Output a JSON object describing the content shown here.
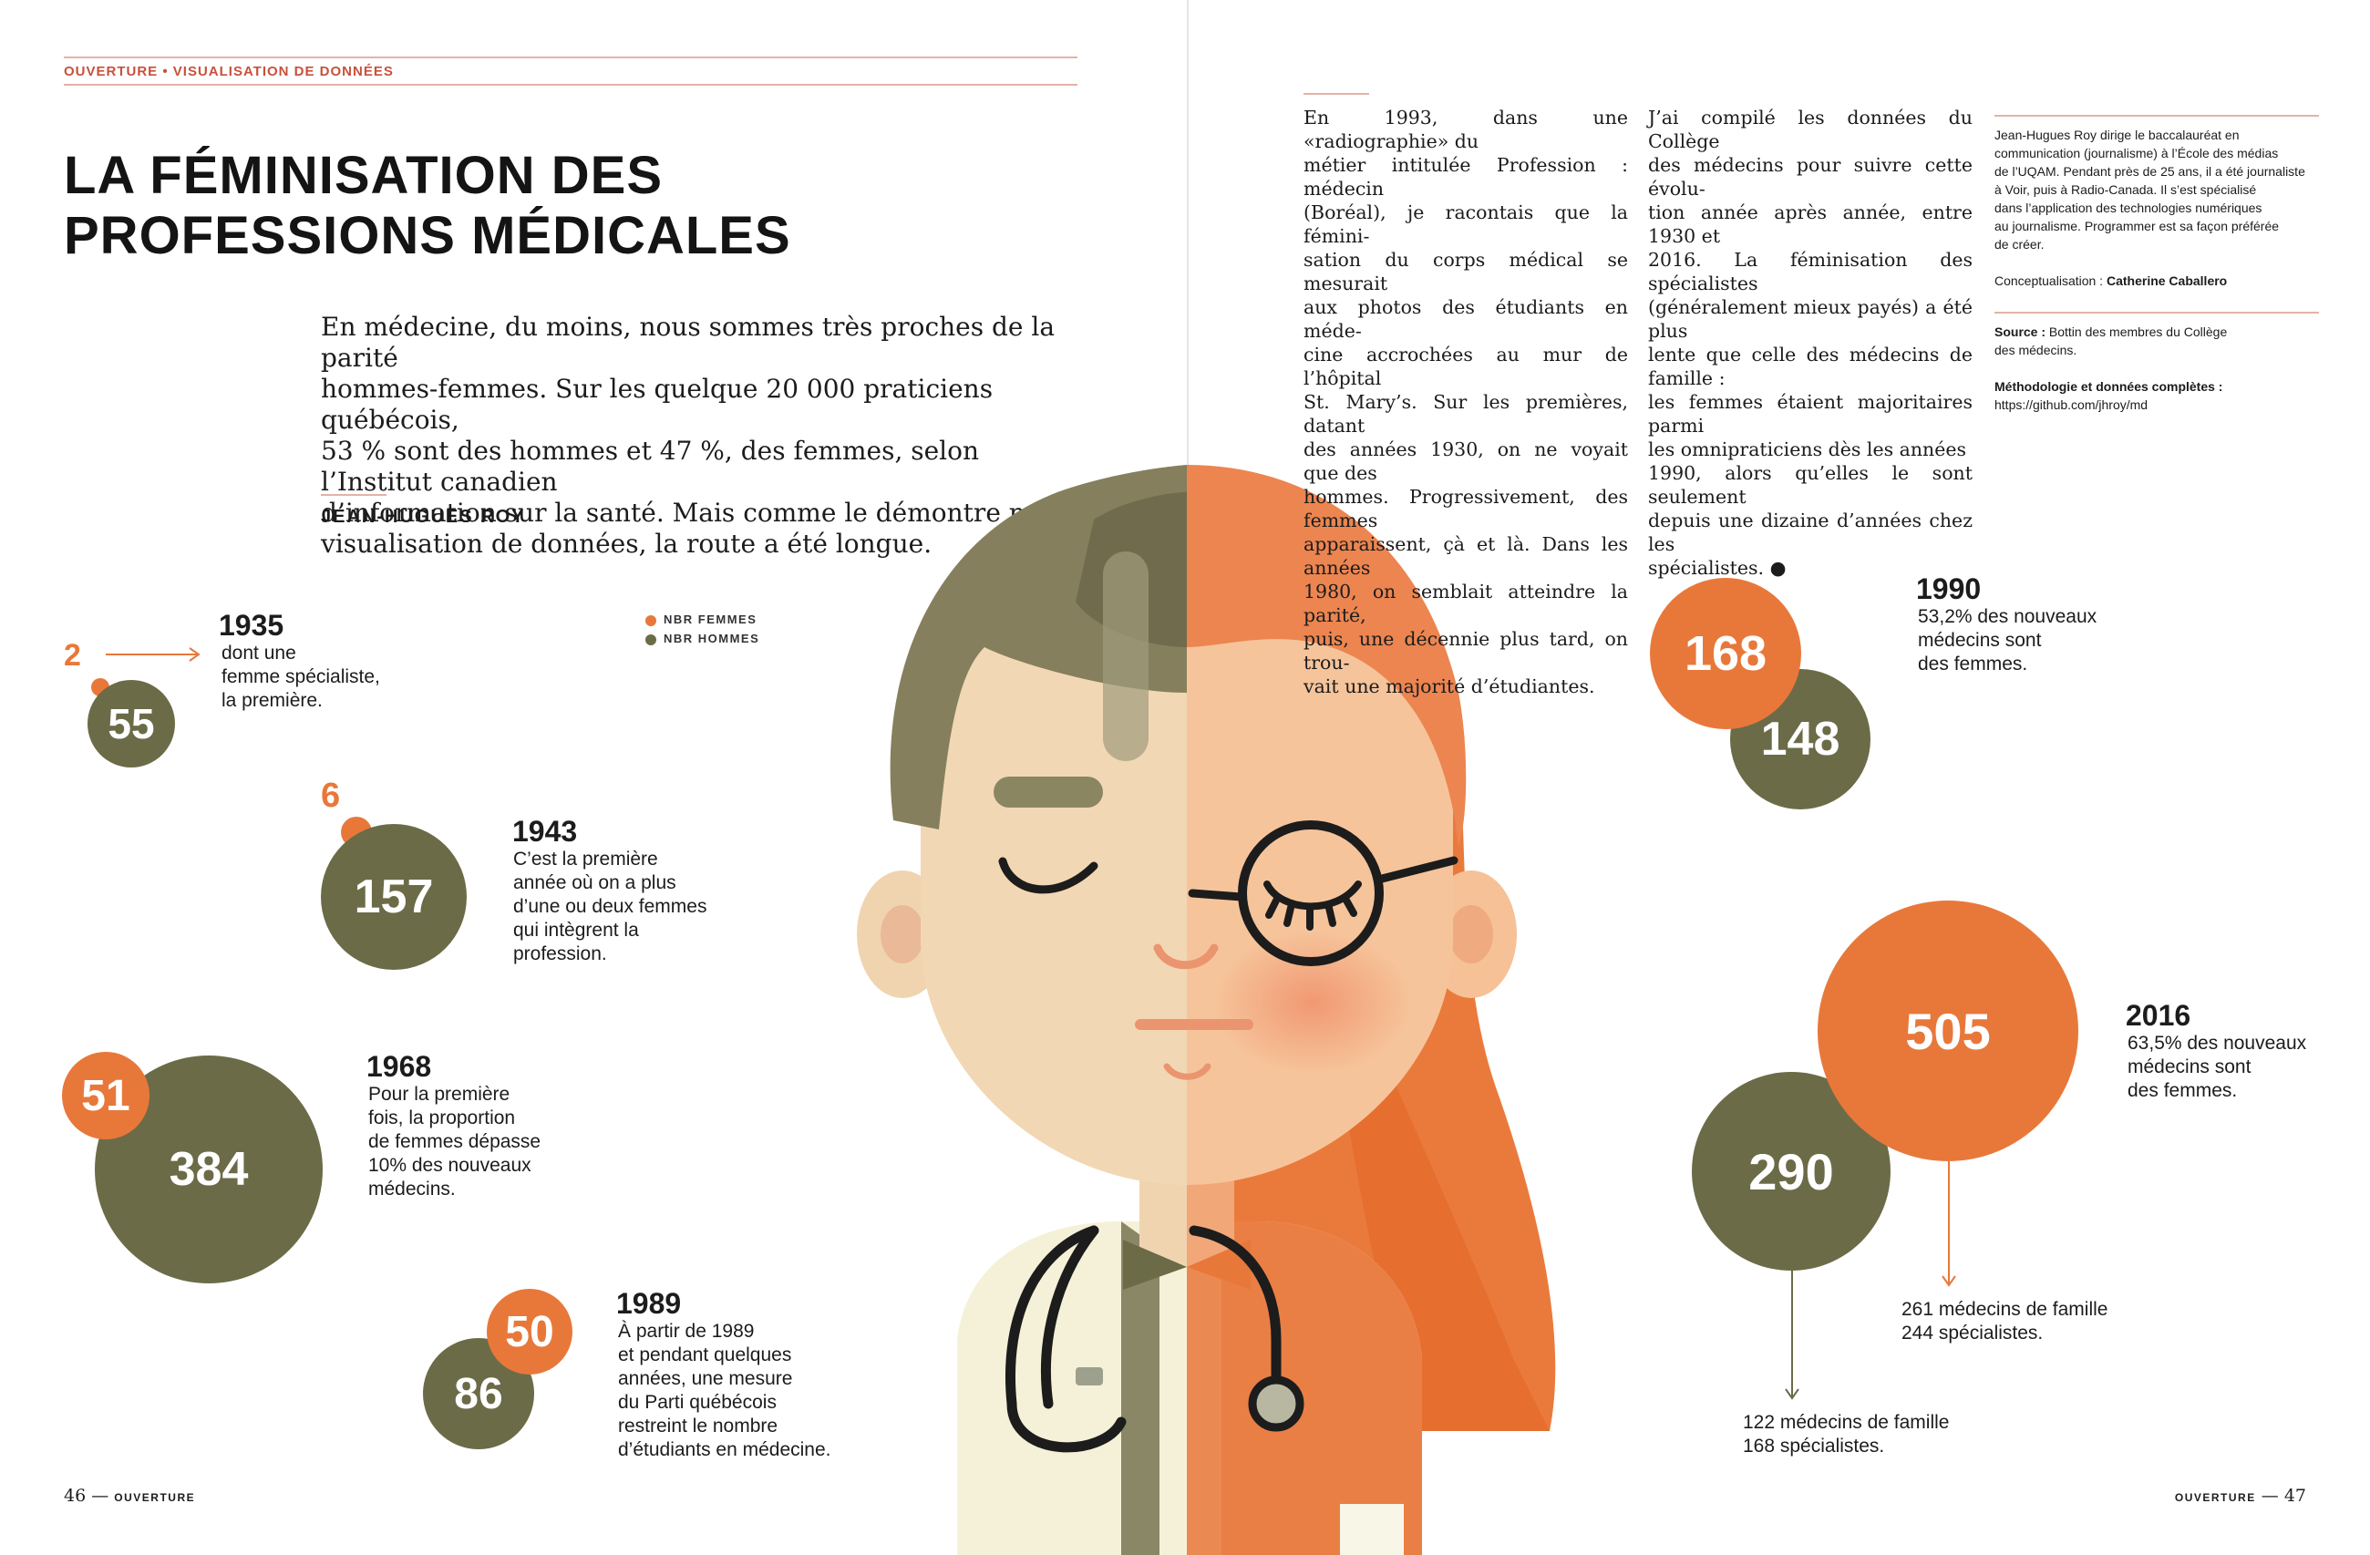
{
  "header": {
    "section": "OUVERTURE",
    "separator": " • ",
    "subsection": "VISUALISATION DE DONNÉES"
  },
  "title": {
    "line1": "LA FÉMINISATION DES",
    "line2": "PROFESSIONS MÉDICALES"
  },
  "lead": {
    "lines": [
      "En médecine, du moins, nous sommes très proches de la parité",
      "hommes-femmes. Sur les quelque 20 000 praticiens québécois,",
      "53 % sont des hommes et 47 %, des femmes, selon l’Institut canadien",
      "d’information sur la santé. Mais comme le démontre notre",
      "visualisation de données, la route a été longue."
    ]
  },
  "byline": "JEAN-HUGUES ROY",
  "legend": {
    "women": "NBR FEMMES",
    "men": "NBR HOMMES",
    "women_color": "#e8783a",
    "men_color": "#6c6b48"
  },
  "milestones": [
    {
      "year": "1935",
      "women": "2",
      "men": "55",
      "note": [
        "dont une",
        "femme spécialiste,",
        "la première."
      ]
    },
    {
      "year": "1943",
      "women": "6",
      "men": "157",
      "note": [
        "C’est la première",
        "année où on a plus",
        "d’une ou deux femmes",
        "qui intègrent la",
        "profession."
      ]
    },
    {
      "year": "1968",
      "women": "51",
      "men": "384",
      "note": [
        "Pour la première",
        "fois, la proportion",
        "de femmes dépasse",
        "10% des nouveaux",
        "médecins."
      ]
    },
    {
      "year": "1989",
      "women": "50",
      "men": "86",
      "note": [
        "À partir de 1989",
        "et pendant quelques",
        "années, une mesure",
        "du Parti québécois",
        "restreint le nombre",
        "d’étudiants en médecine."
      ]
    },
    {
      "year": "1990",
      "women": "168",
      "men": "148",
      "note": [
        "53,2% des nouveaux",
        "médecins sont",
        "des femmes."
      ]
    },
    {
      "year": "2016",
      "women": "505",
      "men": "290",
      "note": [
        "63,5% des nouveaux",
        "médecins sont",
        "des femmes."
      ],
      "women_breakdown": [
        "261 médecins de famille",
        "244 spécialistes."
      ],
      "men_breakdown": [
        "122 médecins de famille",
        "168 spécialistes."
      ]
    }
  ],
  "article": {
    "col1": [
      "En 1993, dans une «radiographie» du",
      "métier intitulée Profession : médecin",
      "(Boréal), je racontais que la fémini-",
      "sation du corps médical se mesurait",
      "aux photos des étudiants en méde-",
      "cine accrochées au mur de l’hôpital",
      "St. Mary’s. Sur les premières, datant",
      "des années 1930, on ne voyait que des",
      "hommes. Progressivement, des femmes",
      "apparaissent, çà et là. Dans les années",
      "1980, on semblait atteindre la parité,",
      "puis, une décennie plus tard, on trou-",
      "vait une majorité d’étudiantes."
    ],
    "col2": [
      "J’ai compilé les données du Collège",
      "des médecins pour suivre cette évolu-",
      "tion année après année, entre 1930 et",
      "2016. La féminisation des spécialistes",
      "(généralement mieux payés) a été plus",
      "lente que celle des médecins de famille :",
      "les femmes étaient majoritaires parmi",
      "les omnipraticiens dès les années",
      "1990, alors qu’elles le sont seulement",
      "depuis une dizaine d’années chez les",
      "spécialistes. ●"
    ]
  },
  "sidebar": {
    "bio": [
      "Jean-Hugues Roy dirige le baccalauréat en",
      "communication (journalisme) à l’École des médias",
      "de l’UQAM. Pendant près de 25 ans, il a été journaliste",
      "à Voir, puis à Radio-Canada. Il s’est spécialisé",
      "dans l’application des technologies numériques",
      "au journalisme. Programmer est sa façon préférée",
      "de créer."
    ],
    "concept_label": "Conceptualisation :",
    "concept_name": "Catherine Caballero",
    "source_label": "Source :",
    "source_text": "Bottin des membres du Collège",
    "source_text2": "des médecins.",
    "method_label": "Méthodologie et données complètes :",
    "method_url": "https://github.com/jhroy/md"
  },
  "footer": {
    "left_page": "46",
    "left_dash": "—",
    "left_label": "OUVERTURE",
    "right_label": "OUVERTURE",
    "right_dash": "—",
    "right_page": "47"
  },
  "colors": {
    "accent": "#c9503a",
    "orange": "#e8783a",
    "olive": "#6c6b48"
  }
}
